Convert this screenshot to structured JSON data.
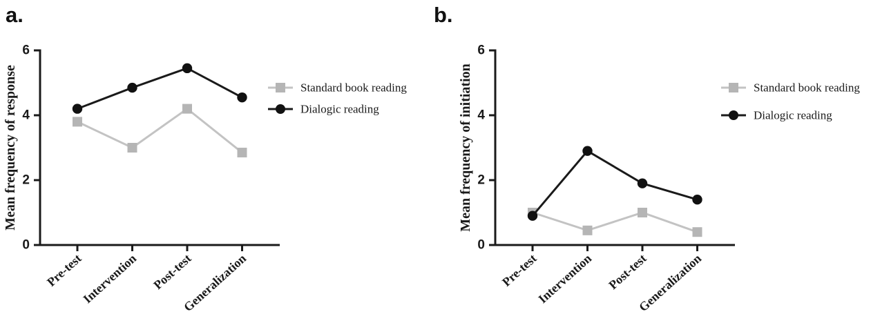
{
  "figure": {
    "background": "#ffffff",
    "axis_color": "#1a1a1a",
    "text_color": "#1a1a1a"
  },
  "chart_data": [
    {
      "type": "line",
      "panel_label": "a.",
      "title": "",
      "xlabel": "",
      "ylabel": "Mean frequency of response",
      "categories": [
        "Pre-test",
        "Intervention",
        "Post-test",
        "Generalization"
      ],
      "series": [
        {
          "name": "Standard book reading",
          "marker": "square",
          "marker_color": "#b5b5b5",
          "line_color": "#c3c3c3",
          "values": [
            3.8,
            3.0,
            4.2,
            2.85
          ]
        },
        {
          "name": "Dialogic reading",
          "marker": "circle",
          "marker_color": "#111111",
          "line_color": "#1a1a1a",
          "values": [
            4.2,
            4.85,
            5.45,
            4.55
          ]
        }
      ],
      "ylim": [
        0,
        6
      ],
      "yticks": [
        0,
        2,
        4,
        6
      ],
      "grid": false,
      "legend_position": "right"
    },
    {
      "type": "line",
      "panel_label": "b.",
      "title": "",
      "xlabel": "",
      "ylabel": "Mean frequency of initiation",
      "categories": [
        "Pre-test",
        "Intervention",
        "Post-test",
        "Generalization"
      ],
      "series": [
        {
          "name": "Standard book reading",
          "marker": "square",
          "marker_color": "#b5b5b5",
          "line_color": "#c3c3c3",
          "values": [
            1.0,
            0.45,
            1.0,
            0.4
          ]
        },
        {
          "name": "Dialogic reading",
          "marker": "circle",
          "marker_color": "#111111",
          "line_color": "#1a1a1a",
          "values": [
            0.9,
            2.9,
            1.9,
            1.4
          ]
        }
      ],
      "ylim": [
        0,
        6
      ],
      "yticks": [
        0,
        2,
        4,
        6
      ],
      "grid": false,
      "legend_position": "right"
    }
  ]
}
